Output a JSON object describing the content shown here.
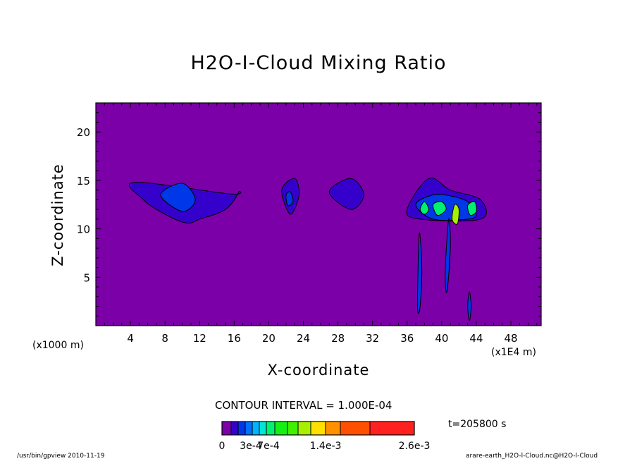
{
  "chart_data": {
    "type": "heatmap",
    "title": "H2O-I-Cloud Mixing Ratio",
    "xlabel": "X-coordinate",
    "ylabel": "Z-coordinate",
    "x_unit_note": "(x1000 m)",
    "x_scale_note": "(x1E4 m)",
    "xlim": [
      0,
      51.5
    ],
    "ylim": [
      0,
      23
    ],
    "x_ticks": [
      4,
      8,
      12,
      16,
      20,
      24,
      28,
      32,
      36,
      40,
      44,
      48
    ],
    "y_ticks": [
      5,
      10,
      15,
      20
    ],
    "contour_interval_label": "CONTOUR INTERVAL = 1.000E-04",
    "time_label": "t=205800 s",
    "colorbar": {
      "levels": [
        0,
        0.0001,
        0.0002,
        0.0003,
        0.0004,
        0.0005,
        0.0006,
        0.0007,
        0.0008,
        0.001,
        0.0012,
        0.0014,
        0.0016,
        0.002,
        0.0026
      ],
      "colors": [
        "#7b00a8",
        "#3600cc",
        "#0038e8",
        "#0070ff",
        "#00b4ff",
        "#00e6d2",
        "#00f070",
        "#14f014",
        "#40f000",
        "#a6f000",
        "#ffe000",
        "#ff9000",
        "#ff5000",
        "#ff2020",
        "#ffa0a0"
      ],
      "tick_labels": [
        {
          "label": "0",
          "value": 0
        },
        {
          "label": "3e-4",
          "value": 0.0003
        },
        {
          "label": "7e-4",
          "value": 0.0007
        },
        {
          "label": "1.4e-3",
          "value": 0.0014
        },
        {
          "label": "2.6e-3",
          "value": 0.0026
        }
      ]
    },
    "background_color": "#7b00a8",
    "cloud_regions": [
      {
        "level": 1,
        "x": [
          4.5,
          15.5,
          16.5,
          15,
          12,
          10.5,
          8,
          5.5,
          4.5
        ],
        "z": [
          14.8,
          13.6,
          13.8,
          12,
          11,
          10.6,
          11.5,
          13,
          14.8
        ]
      },
      {
        "level": 1,
        "x": [
          21.5,
          23,
          23.5,
          22.5,
          21.5
        ],
        "z": [
          14,
          15.2,
          13.5,
          11.5,
          14
        ]
      },
      {
        "level": 1,
        "x": [
          27,
          29.5,
          31,
          29.5,
          27
        ],
        "z": [
          13.8,
          15.2,
          13.5,
          12,
          13.8
        ]
      },
      {
        "level": 1,
        "x": [
          36,
          38.5,
          41,
          44.5,
          44.5,
          37.5,
          36
        ],
        "z": [
          12,
          15.2,
          14,
          13,
          11,
          11,
          12
        ]
      },
      {
        "level": 2,
        "x": [
          7.5,
          10,
          11.5,
          10,
          7.5
        ],
        "z": [
          13.5,
          14.7,
          13,
          11.8,
          13.5
        ]
      },
      {
        "level": 2,
        "x": [
          22,
          22.5,
          22.8,
          22.2,
          22
        ],
        "z": [
          13.5,
          13.8,
          12.8,
          12.4,
          13.5
        ]
      },
      {
        "level": 2,
        "x": [
          37,
          39,
          41,
          43,
          44,
          43,
          39,
          37
        ],
        "z": [
          12.5,
          13.5,
          13.4,
          12.8,
          11.5,
          11,
          11,
          12.5
        ]
      },
      {
        "level": 6,
        "x": [
          37.5,
          38,
          38.5,
          38,
          37.5
        ],
        "z": [
          12,
          12.8,
          12,
          11.5,
          12
        ]
      },
      {
        "level": 6,
        "x": [
          39,
          40,
          40.5,
          39.5,
          39
        ],
        "z": [
          12.5,
          12.8,
          12,
          11.4,
          12.5
        ]
      },
      {
        "level": 6,
        "x": [
          43,
          43.8,
          44,
          43.3,
          43
        ],
        "z": [
          12.4,
          12.8,
          11.8,
          11.4,
          12.4
        ]
      },
      {
        "level": 9,
        "x": [
          41.5,
          42,
          41.8,
          41.2,
          41.5
        ],
        "z": [
          12.5,
          12,
          10.5,
          11,
          12.5
        ]
      },
      {
        "level": 2,
        "x": [
          37.4,
          37.7,
          37.5,
          37.2,
          37.4
        ],
        "z": [
          9.5,
          6,
          2,
          2,
          9.5
        ]
      },
      {
        "level": 2,
        "x": [
          40.8,
          41,
          40.6,
          40.4,
          40.8
        ],
        "z": [
          11,
          8,
          3.5,
          5.5,
          11
        ]
      },
      {
        "level": 2,
        "x": [
          43.2,
          43.4,
          43.2,
          43,
          43.2
        ],
        "z": [
          3.5,
          2,
          0.5,
          2,
          3.5
        ]
      }
    ]
  },
  "footer": {
    "program": "/usr/bin/gpview  2010-11-19",
    "source": "arare-earth_H2O-l-Cloud.nc@H2O-l-Cloud"
  }
}
